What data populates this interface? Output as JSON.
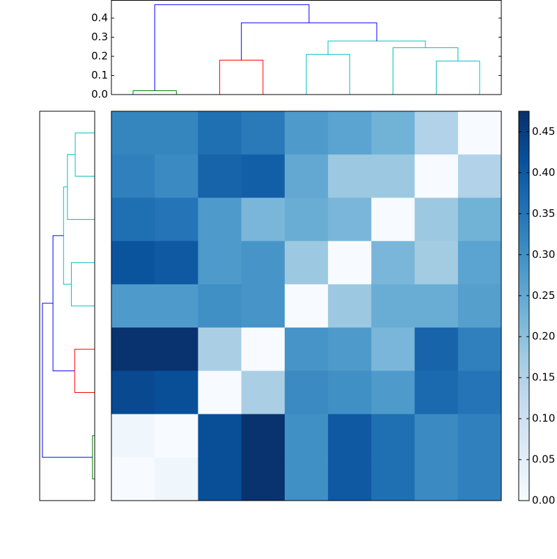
{
  "chart_data": {
    "type": "clustermap",
    "values": [
      [
        0.32,
        0.32,
        0.36,
        0.34,
        0.28,
        0.26,
        0.23,
        0.15,
        0.0
      ],
      [
        0.33,
        0.31,
        0.38,
        0.39,
        0.25,
        0.18,
        0.18,
        0.0,
        0.15
      ],
      [
        0.36,
        0.35,
        0.28,
        0.22,
        0.24,
        0.22,
        0.0,
        0.18,
        0.23
      ],
      [
        0.41,
        0.4,
        0.28,
        0.29,
        0.18,
        0.0,
        0.22,
        0.17,
        0.26
      ],
      [
        0.28,
        0.28,
        0.3,
        0.29,
        0.0,
        0.18,
        0.24,
        0.24,
        0.27
      ],
      [
        0.47,
        0.47,
        0.16,
        0.0,
        0.29,
        0.28,
        0.22,
        0.38,
        0.33
      ],
      [
        0.43,
        0.42,
        0.0,
        0.16,
        0.31,
        0.3,
        0.28,
        0.37,
        0.35
      ],
      [
        0.02,
        0.0,
        0.42,
        0.47,
        0.3,
        0.4,
        0.36,
        0.31,
        0.33
      ],
      [
        0.0,
        0.02,
        0.42,
        0.47,
        0.3,
        0.4,
        0.36,
        0.31,
        0.33
      ]
    ],
    "colormap": [
      "#f7fbff",
      "#deebf7",
      "#c6dbef",
      "#9ecae1",
      "#6baed6",
      "#4292c6",
      "#2171b5",
      "#08519c",
      "#08306b"
    ],
    "clim": [
      0,
      0.475
    ],
    "cticks": [
      {
        "value": 0,
        "label": "0.00"
      },
      {
        "value": 0.05,
        "label": "0.05"
      },
      {
        "value": 0.1,
        "label": "0.10"
      },
      {
        "value": 0.15,
        "label": "0.15"
      },
      {
        "value": 0.2,
        "label": "0.20"
      },
      {
        "value": 0.25,
        "label": "0.25"
      },
      {
        "value": 0.3,
        "label": "0.30"
      },
      {
        "value": 0.35,
        "label": "0.35"
      },
      {
        "value": 0.4,
        "label": "0.40"
      },
      {
        "value": 0.45,
        "label": "0.45"
      }
    ],
    "dendrogram": {
      "ylim": [
        0,
        0.4945
      ],
      "yticks": [
        {
          "value": 0,
          "label": "0.0"
        },
        {
          "value": 0.1,
          "label": "0.1"
        },
        {
          "value": 0.2,
          "label": "0.2"
        },
        {
          "value": 0.3,
          "label": "0.3"
        },
        {
          "value": 0.4,
          "label": "0.4"
        }
      ],
      "links": [
        {
          "left": 0,
          "right": 1,
          "height": 0.02,
          "color": "#008000"
        },
        {
          "left": 2,
          "right": 3,
          "height": 0.18,
          "color": "#ff0000"
        },
        {
          "left": 4,
          "right": 5,
          "height": 0.21,
          "color": "#00bfbf"
        },
        {
          "left": 7,
          "right": 8,
          "height": 0.175,
          "color": "#00bfbf"
        },
        {
          "left": 6,
          "right": 12,
          "height": 0.245,
          "color": "#00bfbf"
        },
        {
          "left": 11,
          "right": 13,
          "height": 0.28,
          "color": "#00bfbf"
        },
        {
          "left": 10,
          "right": 14,
          "height": 0.375,
          "color": "#0000ff"
        },
        {
          "left": 9,
          "right": 15,
          "height": 0.47,
          "color": "#0000ff"
        }
      ]
    }
  }
}
